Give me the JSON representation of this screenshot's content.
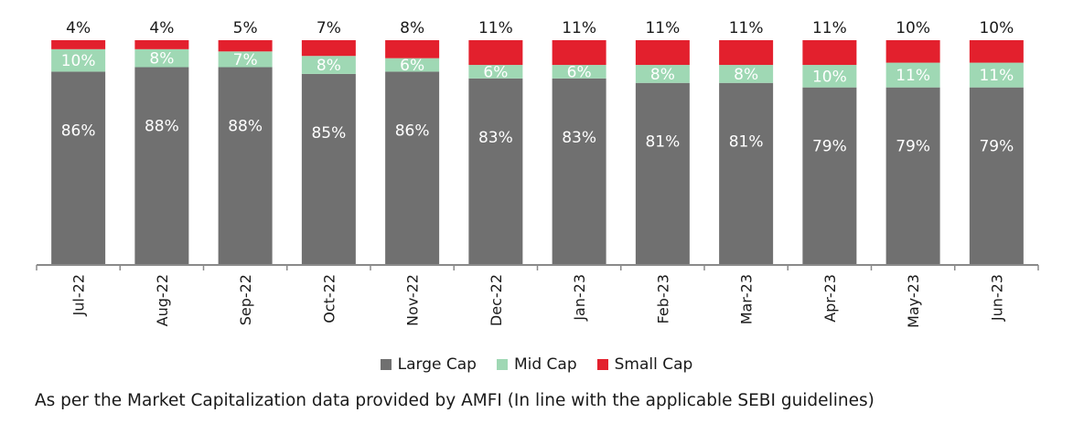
{
  "chart_data": {
    "type": "bar",
    "stacked": true,
    "categories": [
      "Jul-22",
      "Aug-22",
      "Sep-22",
      "Oct-22",
      "Nov-22",
      "Dec-22",
      "Jan-23",
      "Feb-23",
      "Mar-23",
      "Apr-23",
      "May-23",
      "Jun-23"
    ],
    "series": [
      {
        "name": "Large Cap",
        "color": "#707070",
        "label_color": "#ffffff",
        "values": [
          86,
          88,
          88,
          85,
          86,
          83,
          83,
          81,
          81,
          79,
          79,
          79
        ]
      },
      {
        "name": "Mid Cap",
        "color": "#9fd8b4",
        "label_color": "#ffffff",
        "values": [
          10,
          8,
          7,
          8,
          6,
          6,
          6,
          8,
          8,
          10,
          11,
          11
        ]
      },
      {
        "name": "Small Cap",
        "color": "#e3202d",
        "label_color": "#1a1a1a",
        "values": [
          4,
          4,
          5,
          7,
          8,
          11,
          11,
          11,
          11,
          11,
          10,
          10
        ]
      }
    ],
    "data_labels": [
      [
        "86%",
        "88%",
        "88%",
        "85%",
        "86%",
        "83%",
        "83%",
        "81%",
        "81%",
        "79%",
        "79%",
        "79%"
      ],
      [
        "10%",
        "8%",
        "7%",
        "8%",
        "6%",
        "6%",
        "6%",
        "8%",
        "8%",
        "10%",
        "11%",
        "11%"
      ],
      [
        "4%",
        "4%",
        "5%",
        "7%",
        "8%",
        "11%",
        "11%",
        "11%",
        "11%",
        "11%",
        "10%",
        "10%"
      ]
    ],
    "ylim": [
      0,
      100
    ],
    "grid": false,
    "legend_position": "bottom",
    "title": "",
    "xlabel": "",
    "ylabel": ""
  },
  "footnote": "As per the Market Capitalization data provided by AMFI (In line with the applicable SEBI guidelines)"
}
